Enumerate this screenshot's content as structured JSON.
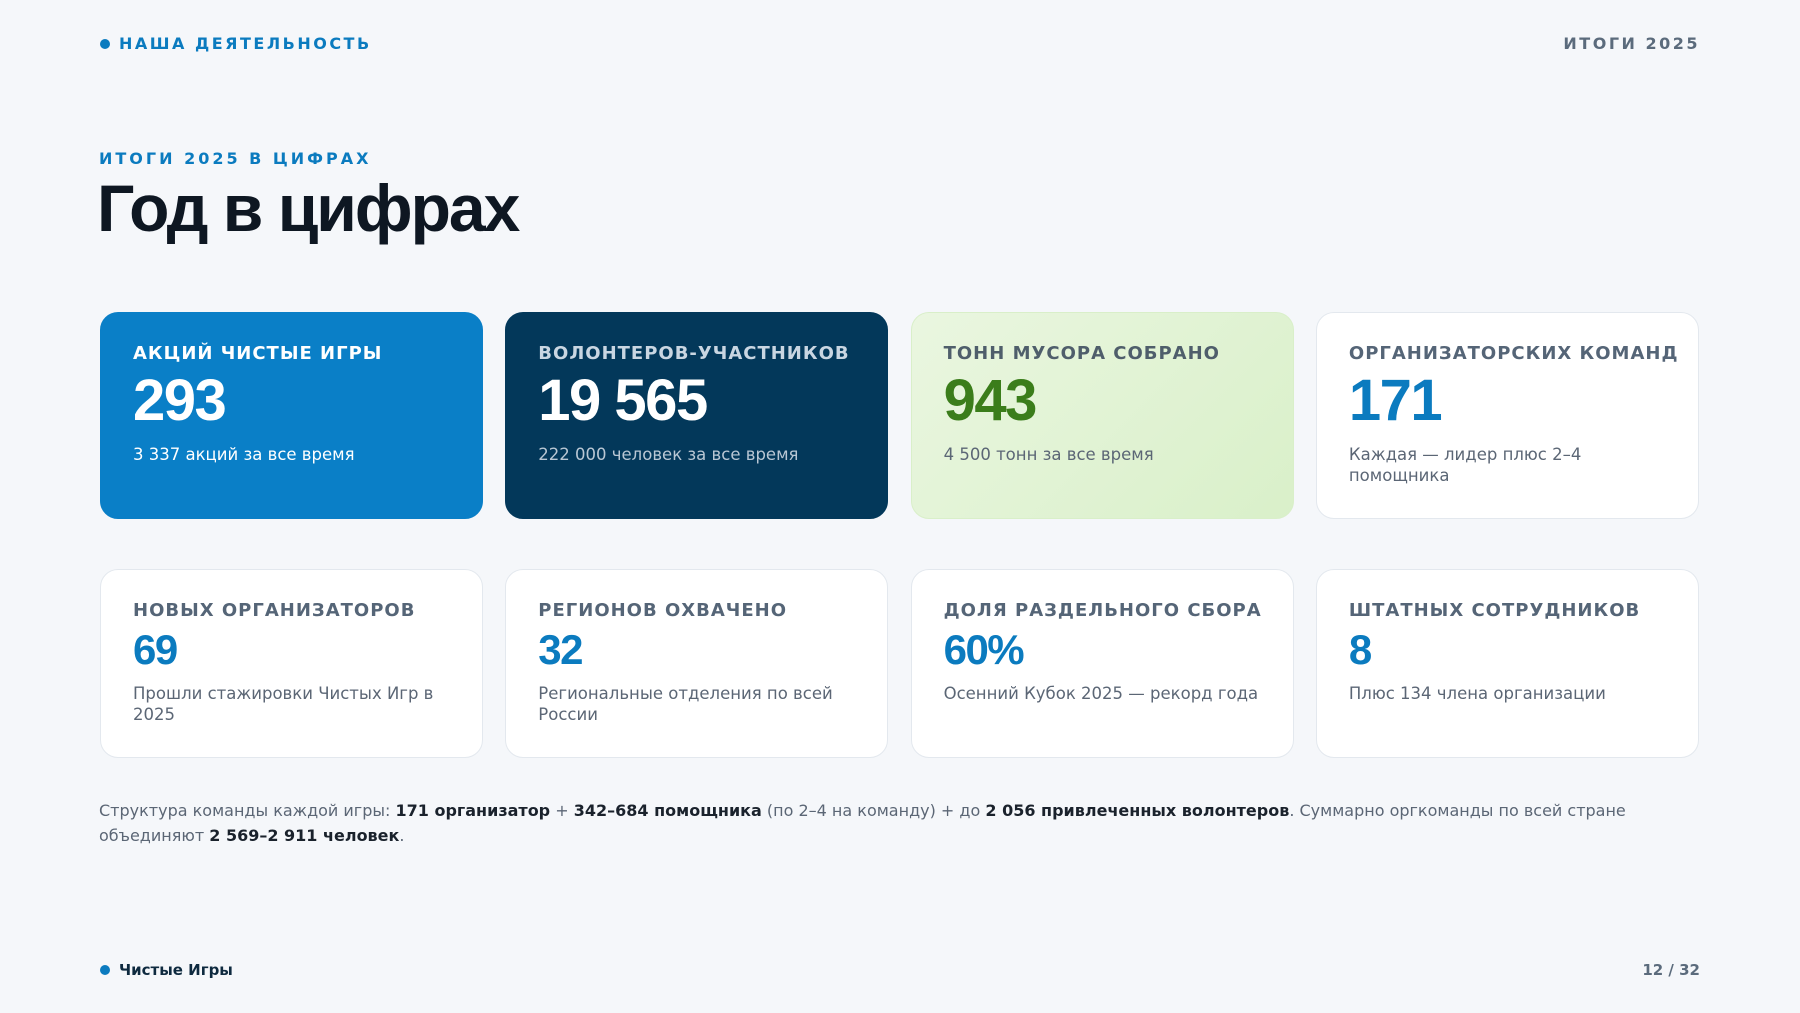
{
  "header": {
    "section": "НАША ДЕЯТЕЛЬНОСТЬ",
    "tag": "ИТОГИ 2025"
  },
  "heading": {
    "eyebrow": "ИТОГИ 2025 В ЦИФРАХ",
    "title": "Год в цифрах"
  },
  "cards": [
    {
      "label": "АКЦИЙ ЧИСТЫЕ ИГРЫ",
      "value": "293",
      "note": "3 337 акций за все время"
    },
    {
      "label": "ВОЛОНТЕРОВ-УЧАСТНИКОВ",
      "value": "19 565",
      "note": "222 000 человек за все время"
    },
    {
      "label": "ТОНН МУСОРА СОБРАНО",
      "value": "943",
      "note": "4 500 тонн за все время"
    },
    {
      "label": "ОРГАНИЗАТОРСКИХ КОМАНД",
      "value": "171",
      "note": "Каждая — лидер плюс 2–4 помощника"
    },
    {
      "label": "НОВЫХ ОРГАНИЗАТОРОВ",
      "value": "69",
      "note": "Прошли стажировки Чистых Игр в 2025"
    },
    {
      "label": "РЕГИОНОВ ОХВАЧЕНО",
      "value": "32",
      "note": "Региональные отделения по всей России"
    },
    {
      "label": "ДОЛЯ РАЗДЕЛЬНОГО СБОРА",
      "value": "60%",
      "note": "Осенний Кубок 2025 — рекорд года"
    },
    {
      "label": "ШТАТНЫХ СОТРУДНИКОВ",
      "value": "8",
      "note": "Плюс 134 члена организации"
    }
  ],
  "footnote": [
    {
      "text": "Структура команды каждой игры: ",
      "bold": false
    },
    {
      "text": "171 организатор",
      "bold": true
    },
    {
      "text": " + ",
      "bold": false
    },
    {
      "text": "342–684 помощника",
      "bold": true
    },
    {
      "text": " (по 2–4 на команду) + до ",
      "bold": false
    },
    {
      "text": "2 056 привлеченных волонтеров",
      "bold": true
    },
    {
      "text": ". Суммарно оргкоманды по всей стране объединяют ",
      "bold": false
    },
    {
      "text": "2 569–2 911 человек",
      "bold": true
    },
    {
      "text": ".",
      "bold": false
    }
  ],
  "footer": {
    "brand": "Чистые Игры",
    "page": "12 / 32"
  }
}
